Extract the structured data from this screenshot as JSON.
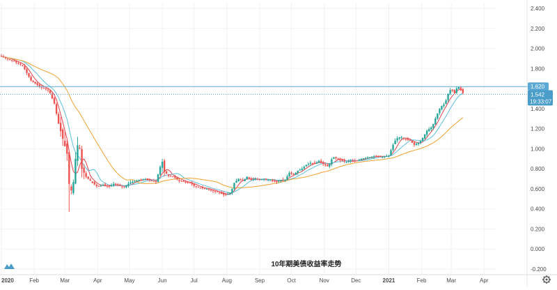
{
  "chart_data": {
    "type": "candlestick",
    "title": "10年期美债收益率走势",
    "xlabel": "",
    "ylabel": "",
    "ylim": [
      -0.2,
      2.4
    ],
    "y_ticks": [
      "2.400",
      "2.200",
      "2.000",
      "1.800",
      "1.620",
      "1.542",
      "1.400",
      "1.200",
      "1.000",
      "0.800",
      "0.600",
      "0.400",
      "0.200",
      "0.000",
      "-0.200"
    ],
    "x_ticks": [
      {
        "label": "2020",
        "day": 0
      },
      {
        "label": "Feb",
        "day": 31
      },
      {
        "label": "Mar",
        "day": 60
      },
      {
        "label": "Apr",
        "day": 91
      },
      {
        "label": "May",
        "day": 121
      },
      {
        "label": "Jun",
        "day": 152
      },
      {
        "label": "Jul",
        "day": 182
      },
      {
        "label": "Aug",
        "day": 213
      },
      {
        "label": "Sep",
        "day": 244
      },
      {
        "label": "Oct",
        "day": 274
      },
      {
        "label": "Nov",
        "day": 305
      },
      {
        "label": "Dec",
        "day": 335
      },
      {
        "label": "2021",
        "day": 366
      },
      {
        "label": "Feb",
        "day": 397
      },
      {
        "label": "Mar",
        "day": 425
      },
      {
        "label": "Apr",
        "day": 456
      }
    ],
    "horizontal_line": {
      "value": 1.62,
      "label": "1.620",
      "color": "#5aa9d6"
    },
    "last_price": {
      "value": 1.542,
      "label": "1.542",
      "countdown": "19:33:07",
      "color": "#4a9dc9"
    },
    "colors": {
      "up": "#26a69a",
      "down": "#ef5350",
      "ma_fast": "#e0404a",
      "ma_mid": "#5bc0de",
      "ma_slow": "#f0a030",
      "grid": "#f2f2f2"
    },
    "x_end_day": 467,
    "price_path": [
      [
        0,
        1.92
      ],
      [
        10,
        1.88
      ],
      [
        20,
        1.83
      ],
      [
        28,
        1.68
      ],
      [
        36,
        1.62
      ],
      [
        45,
        1.58
      ],
      [
        50,
        1.45
      ],
      [
        54,
        1.25
      ],
      [
        58,
        1.1
      ],
      [
        62,
        0.95
      ],
      [
        64,
        0.65
      ],
      [
        67,
        0.55
      ],
      [
        70,
        0.9
      ],
      [
        73,
        1.1
      ],
      [
        76,
        0.8
      ],
      [
        80,
        0.72
      ],
      [
        86,
        0.66
      ],
      [
        91,
        0.62
      ],
      [
        96,
        0.64
      ],
      [
        101,
        0.62
      ],
      [
        106,
        0.65
      ],
      [
        111,
        0.63
      ],
      [
        116,
        0.62
      ],
      [
        121,
        0.66
      ],
      [
        126,
        0.68
      ],
      [
        131,
        0.69
      ],
      [
        137,
        0.7
      ],
      [
        142,
        0.68
      ],
      [
        146,
        0.67
      ],
      [
        150,
        0.82
      ],
      [
        152,
        0.87
      ],
      [
        154,
        0.77
      ],
      [
        158,
        0.73
      ],
      [
        163,
        0.72
      ],
      [
        168,
        0.68
      ],
      [
        173,
        0.67
      ],
      [
        178,
        0.66
      ],
      [
        182,
        0.63
      ],
      [
        188,
        0.61
      ],
      [
        194,
        0.6
      ],
      [
        200,
        0.58
      ],
      [
        206,
        0.56
      ],
      [
        210,
        0.54
      ],
      [
        213,
        0.54
      ],
      [
        217,
        0.57
      ],
      [
        220,
        0.66
      ],
      [
        224,
        0.7
      ],
      [
        228,
        0.68
      ],
      [
        232,
        0.72
      ],
      [
        236,
        0.69
      ],
      [
        240,
        0.7
      ],
      [
        244,
        0.69
      ],
      [
        248,
        0.7
      ],
      [
        252,
        0.69
      ],
      [
        256,
        0.68
      ],
      [
        260,
        0.67
      ],
      [
        264,
        0.69
      ],
      [
        268,
        0.69
      ],
      [
        272,
        0.76
      ],
      [
        276,
        0.74
      ],
      [
        280,
        0.78
      ],
      [
        284,
        0.8
      ],
      [
        288,
        0.84
      ],
      [
        292,
        0.86
      ],
      [
        296,
        0.85
      ],
      [
        300,
        0.88
      ],
      [
        305,
        0.84
      ],
      [
        309,
        0.82
      ],
      [
        313,
        0.92
      ],
      [
        317,
        0.9
      ],
      [
        321,
        0.88
      ],
      [
        326,
        0.87
      ],
      [
        330,
        0.88
      ],
      [
        335,
        0.88
      ],
      [
        340,
        0.9
      ],
      [
        345,
        0.91
      ],
      [
        350,
        0.92
      ],
      [
        355,
        0.93
      ],
      [
        360,
        0.92
      ],
      [
        366,
        0.93
      ],
      [
        370,
        1.04
      ],
      [
        373,
        1.1
      ],
      [
        377,
        1.12
      ],
      [
        381,
        1.1
      ],
      [
        386,
        1.08
      ],
      [
        390,
        1.04
      ],
      [
        394,
        1.06
      ],
      [
        397,
        1.09
      ],
      [
        402,
        1.18
      ],
      [
        407,
        1.22
      ],
      [
        411,
        1.33
      ],
      [
        415,
        1.42
      ],
      [
        419,
        1.45
      ],
      [
        423,
        1.58
      ],
      [
        425,
        1.59
      ],
      [
        428,
        1.56
      ],
      [
        431,
        1.62
      ],
      [
        433,
        1.61
      ],
      [
        435,
        1.57
      ],
      [
        437,
        1.542
      ]
    ]
  }
}
